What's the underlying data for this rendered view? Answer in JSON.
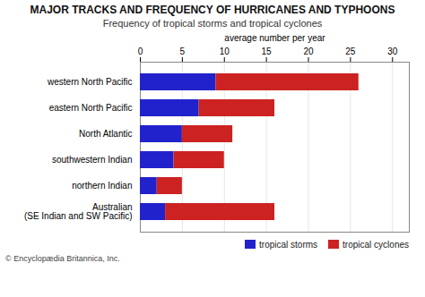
{
  "chart_data": {
    "type": "bar",
    "orientation": "horizontal",
    "stacked": true,
    "title": "MAJOR TRACKS AND FREQUENCY OF HURRICANES AND TYPHOONS",
    "subtitle": "Frequency of tropical storms and tropical cyclones",
    "x_label": "average number per year",
    "categories": [
      "western North Pacific",
      "eastern North Pacific",
      "North Atlantic",
      "southwestern Indian",
      "northern Indian",
      "Australian\n(SE Indian and SW Pacific)"
    ],
    "series": [
      {
        "name": "tropical storms",
        "color": "#2222cc",
        "values": [
          9,
          7,
          5,
          4,
          2,
          3
        ]
      },
      {
        "name": "tropical cyclones",
        "color": "#cc2222",
        "values": [
          17,
          9,
          6,
          6,
          3,
          13
        ]
      }
    ],
    "xlim": [
      0,
      32
    ],
    "xticks": [
      0,
      5,
      10,
      15,
      20,
      25,
      30
    ],
    "grid": true,
    "legend": "lower right",
    "annotations": [
      "© Encyclopædia Britannica, Inc."
    ]
  }
}
